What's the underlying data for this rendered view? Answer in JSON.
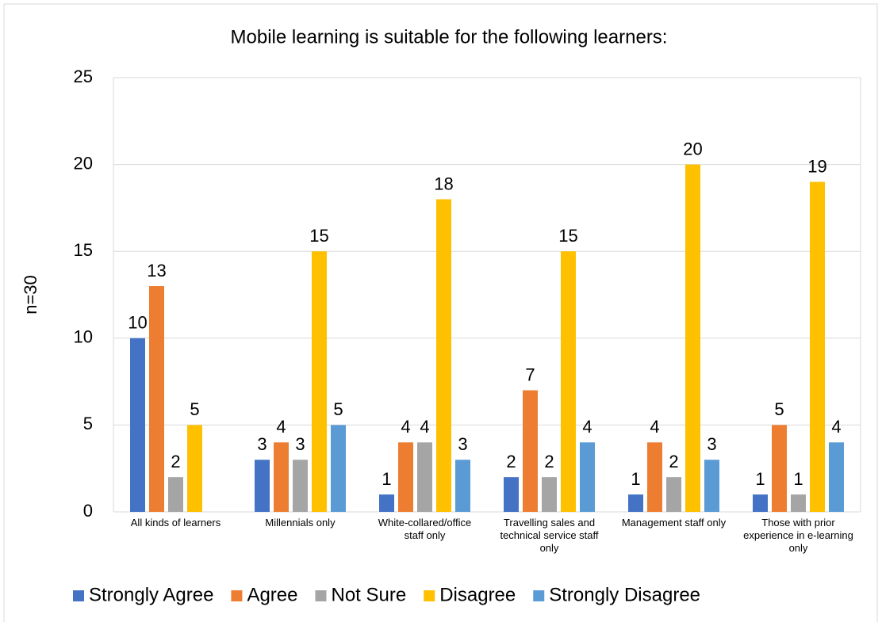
{
  "chart_data": {
    "type": "bar",
    "title": "Mobile learning is suitable for the following learners:",
    "y_label": "n=30",
    "categories": [
      "All kinds of learners",
      "Millennials only",
      "White-collared/office staff only",
      "Travelling sales and technical service staff only",
      "Management staff only",
      "Those with prior experience in e-learning only"
    ],
    "series": [
      {
        "name": "Strongly Agree",
        "color": "#4472c4",
        "values": [
          10,
          3,
          1,
          2,
          1,
          1
        ]
      },
      {
        "name": "Agree",
        "color": "#ed7d31",
        "values": [
          13,
          4,
          4,
          7,
          4,
          5
        ]
      },
      {
        "name": "Not Sure",
        "color": "#a5a5a5",
        "values": [
          2,
          3,
          4,
          2,
          2,
          1
        ]
      },
      {
        "name": "Disagree",
        "color": "#ffc000",
        "values": [
          5,
          15,
          18,
          15,
          20,
          19
        ]
      },
      {
        "name": "Strongly Disagree",
        "color": "#5b9bd5",
        "values": [
          null,
          5,
          3,
          4,
          3,
          4
        ]
      }
    ],
    "ylim": [
      0,
      25
    ],
    "yticks": [
      0,
      5,
      10,
      15,
      20,
      25
    ],
    "grid": true,
    "legend": "bottom"
  }
}
